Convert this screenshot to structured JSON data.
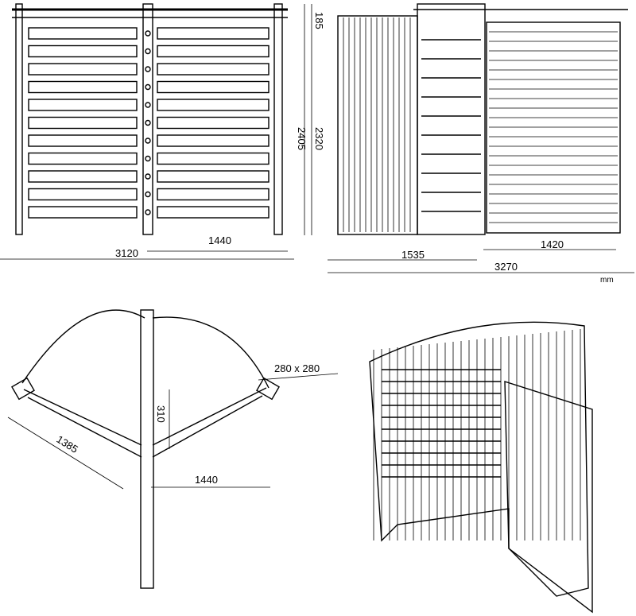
{
  "colors": {
    "line": "#000000",
    "background": "#ffffff"
  },
  "front_view": {
    "total_width": "3120",
    "leaf_width": "1440",
    "height_total": "2405",
    "height_inner": "2320",
    "height_top": "185"
  },
  "side_view": {
    "depth_left": "1535",
    "depth_right": "1420",
    "total_depth": "3270",
    "unit": "mm"
  },
  "plan_view": {
    "post_size": "280 x 280",
    "diagonal": "1385",
    "post_offset": "310",
    "radius": "1440"
  }
}
